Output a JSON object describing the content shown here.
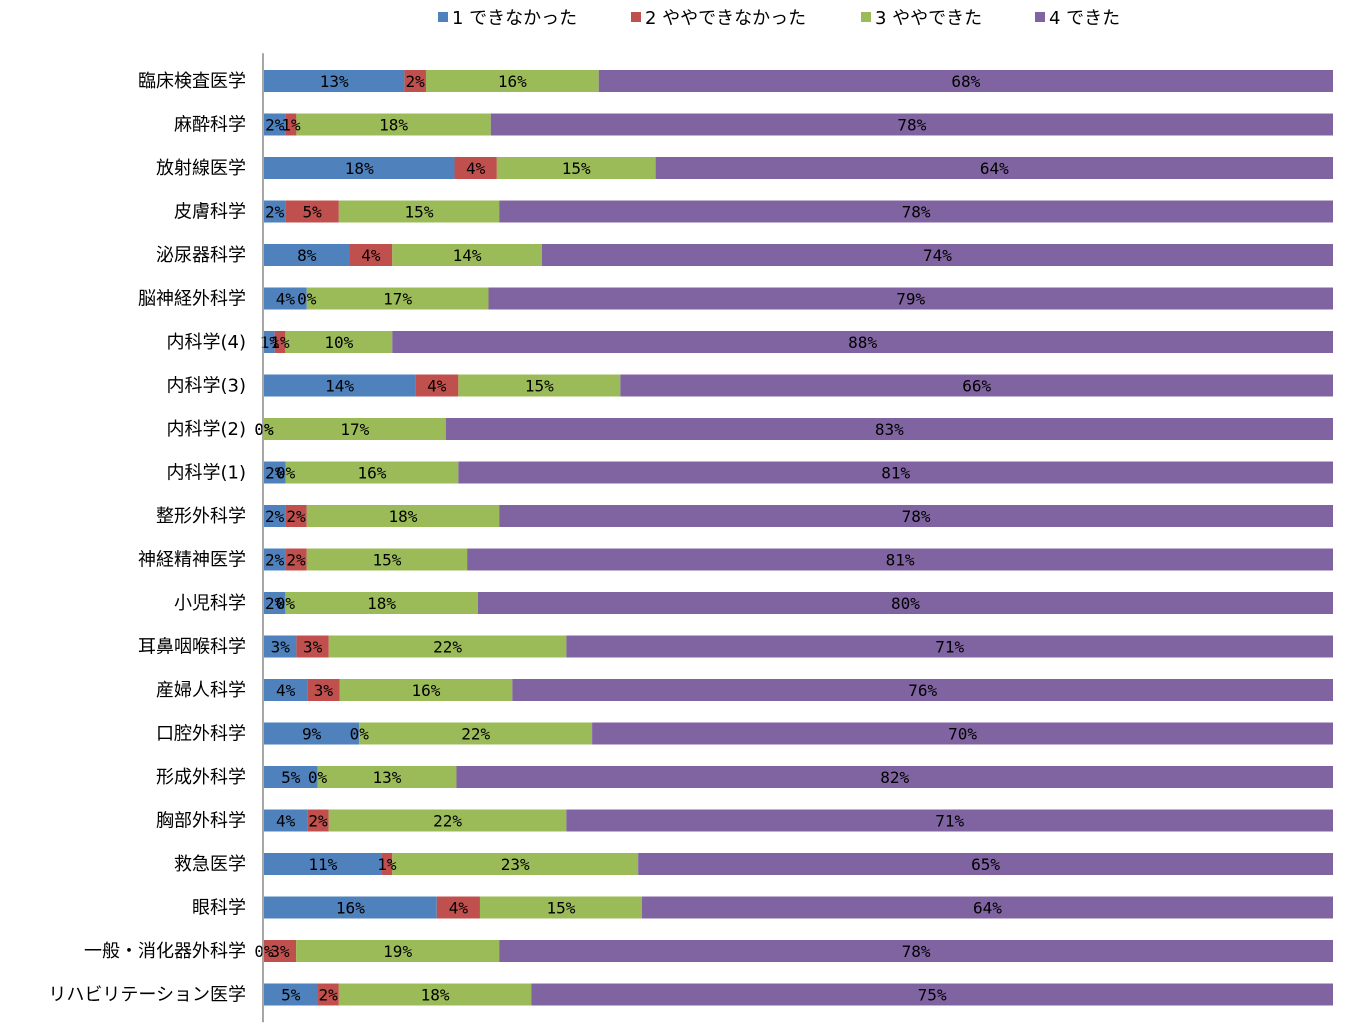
{
  "chart_data": {
    "type": "bar",
    "orientation": "horizontal",
    "stacked": true,
    "percent_stacked": true,
    "legend_position": "top",
    "grid": false,
    "categories": [
      "臨床検査医学",
      "麻酔科学",
      "放射線医学",
      "皮膚科学",
      "泌尿器科学",
      "脳神経外科学",
      "内科学(4)",
      "内科学(3)",
      "内科学(2)",
      "内科学(1)",
      "整形外科学",
      "神経精神医学",
      "小児科学",
      "耳鼻咽喉科学",
      "産婦人科学",
      "口腔外科学",
      "形成外科学",
      "胸部外科学",
      "救急医学",
      "眼科学",
      "一般・消化器外科学",
      "リハビリテーション医学"
    ],
    "series": [
      {
        "name": "1 できなかった",
        "legend_num": "1",
        "legend_text": "できなかった",
        "color": "#4f81bd",
        "values": [
          13,
          2,
          18,
          2,
          8,
          4,
          1,
          14,
          0,
          2,
          2,
          2,
          2,
          3,
          4,
          9,
          5,
          4,
          11,
          16,
          0,
          5
        ]
      },
      {
        "name": "2 ややできなかった",
        "legend_num": "2",
        "legend_text": "ややできなかった",
        "color": "#c0504d",
        "values": [
          2,
          1,
          4,
          5,
          4,
          0,
          1,
          4,
          0,
          0,
          2,
          2,
          0,
          3,
          3,
          0,
          0,
          2,
          1,
          4,
          3,
          2
        ]
      },
      {
        "name": "3 ややできた",
        "legend_num": "3",
        "legend_text": "ややできた",
        "color": "#9bbb59",
        "values": [
          16,
          18,
          15,
          15,
          14,
          17,
          10,
          15,
          17,
          16,
          18,
          15,
          18,
          22,
          16,
          22,
          13,
          22,
          23,
          15,
          19,
          18
        ]
      },
      {
        "name": "4 できた",
        "legend_num": "4",
        "legend_text": "できた",
        "color": "#8064a2",
        "values": [
          68,
          78,
          64,
          78,
          74,
          79,
          88,
          66,
          83,
          81,
          78,
          81,
          80,
          71,
          76,
          70,
          82,
          71,
          65,
          64,
          78,
          75
        ]
      }
    ],
    "value_suffix": "%"
  }
}
